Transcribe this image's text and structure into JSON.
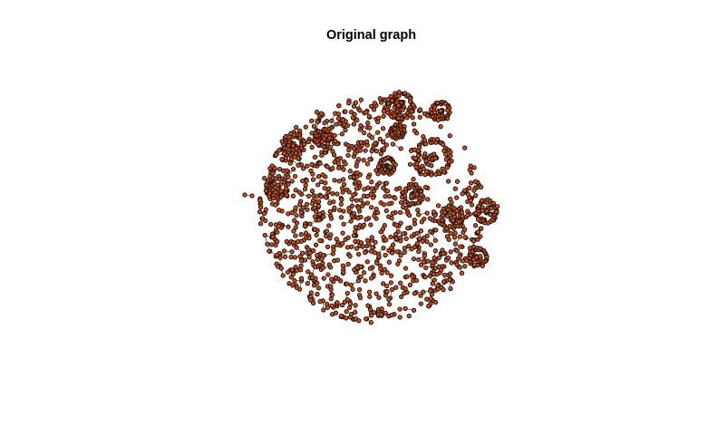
{
  "title": "Original graph",
  "colors": {
    "background": "#ffffff",
    "node_fill": "#c0522a",
    "node_stroke": "#1a0d07",
    "edge": "#2a1a12"
  }
}
